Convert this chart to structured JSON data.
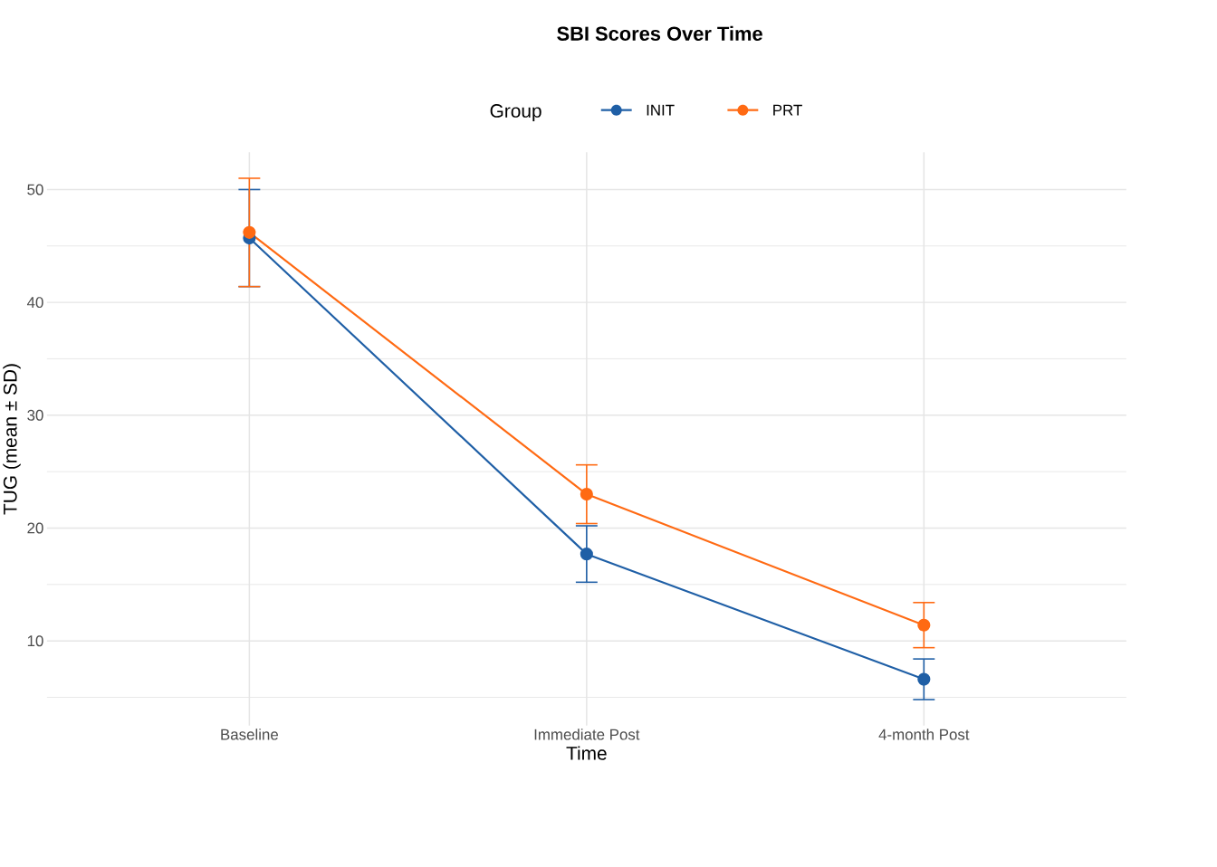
{
  "chart_data": {
    "type": "line",
    "title": "SBI Scores Over Time",
    "xlabel": "Time",
    "ylabel": "TUG (mean ± SD)",
    "legend_title": "Group",
    "categories": [
      "Baseline",
      "Immediate Post",
      "4-month Post"
    ],
    "series": [
      {
        "name": "INIT",
        "color": "#1f5fa6",
        "values": [
          45.7,
          17.7,
          6.6
        ],
        "errors": [
          4.3,
          2.5,
          1.8
        ]
      },
      {
        "name": "PRT",
        "color": "#ff6a13",
        "values": [
          46.2,
          23.0,
          11.4
        ],
        "errors": [
          4.8,
          2.6,
          2.0
        ]
      }
    ],
    "ylim": [
      2.5,
      53.3
    ],
    "yticks": [
      {
        "value": 5,
        "label": null
      },
      10,
      {
        "value": 15,
        "label": null
      },
      20,
      {
        "value": 25,
        "label": null
      },
      30,
      {
        "value": 35,
        "label": null
      },
      40,
      {
        "value": 45,
        "label": null
      },
      50
    ],
    "grid": true,
    "legend": "top",
    "marker": "circle",
    "line_style": "solid"
  }
}
